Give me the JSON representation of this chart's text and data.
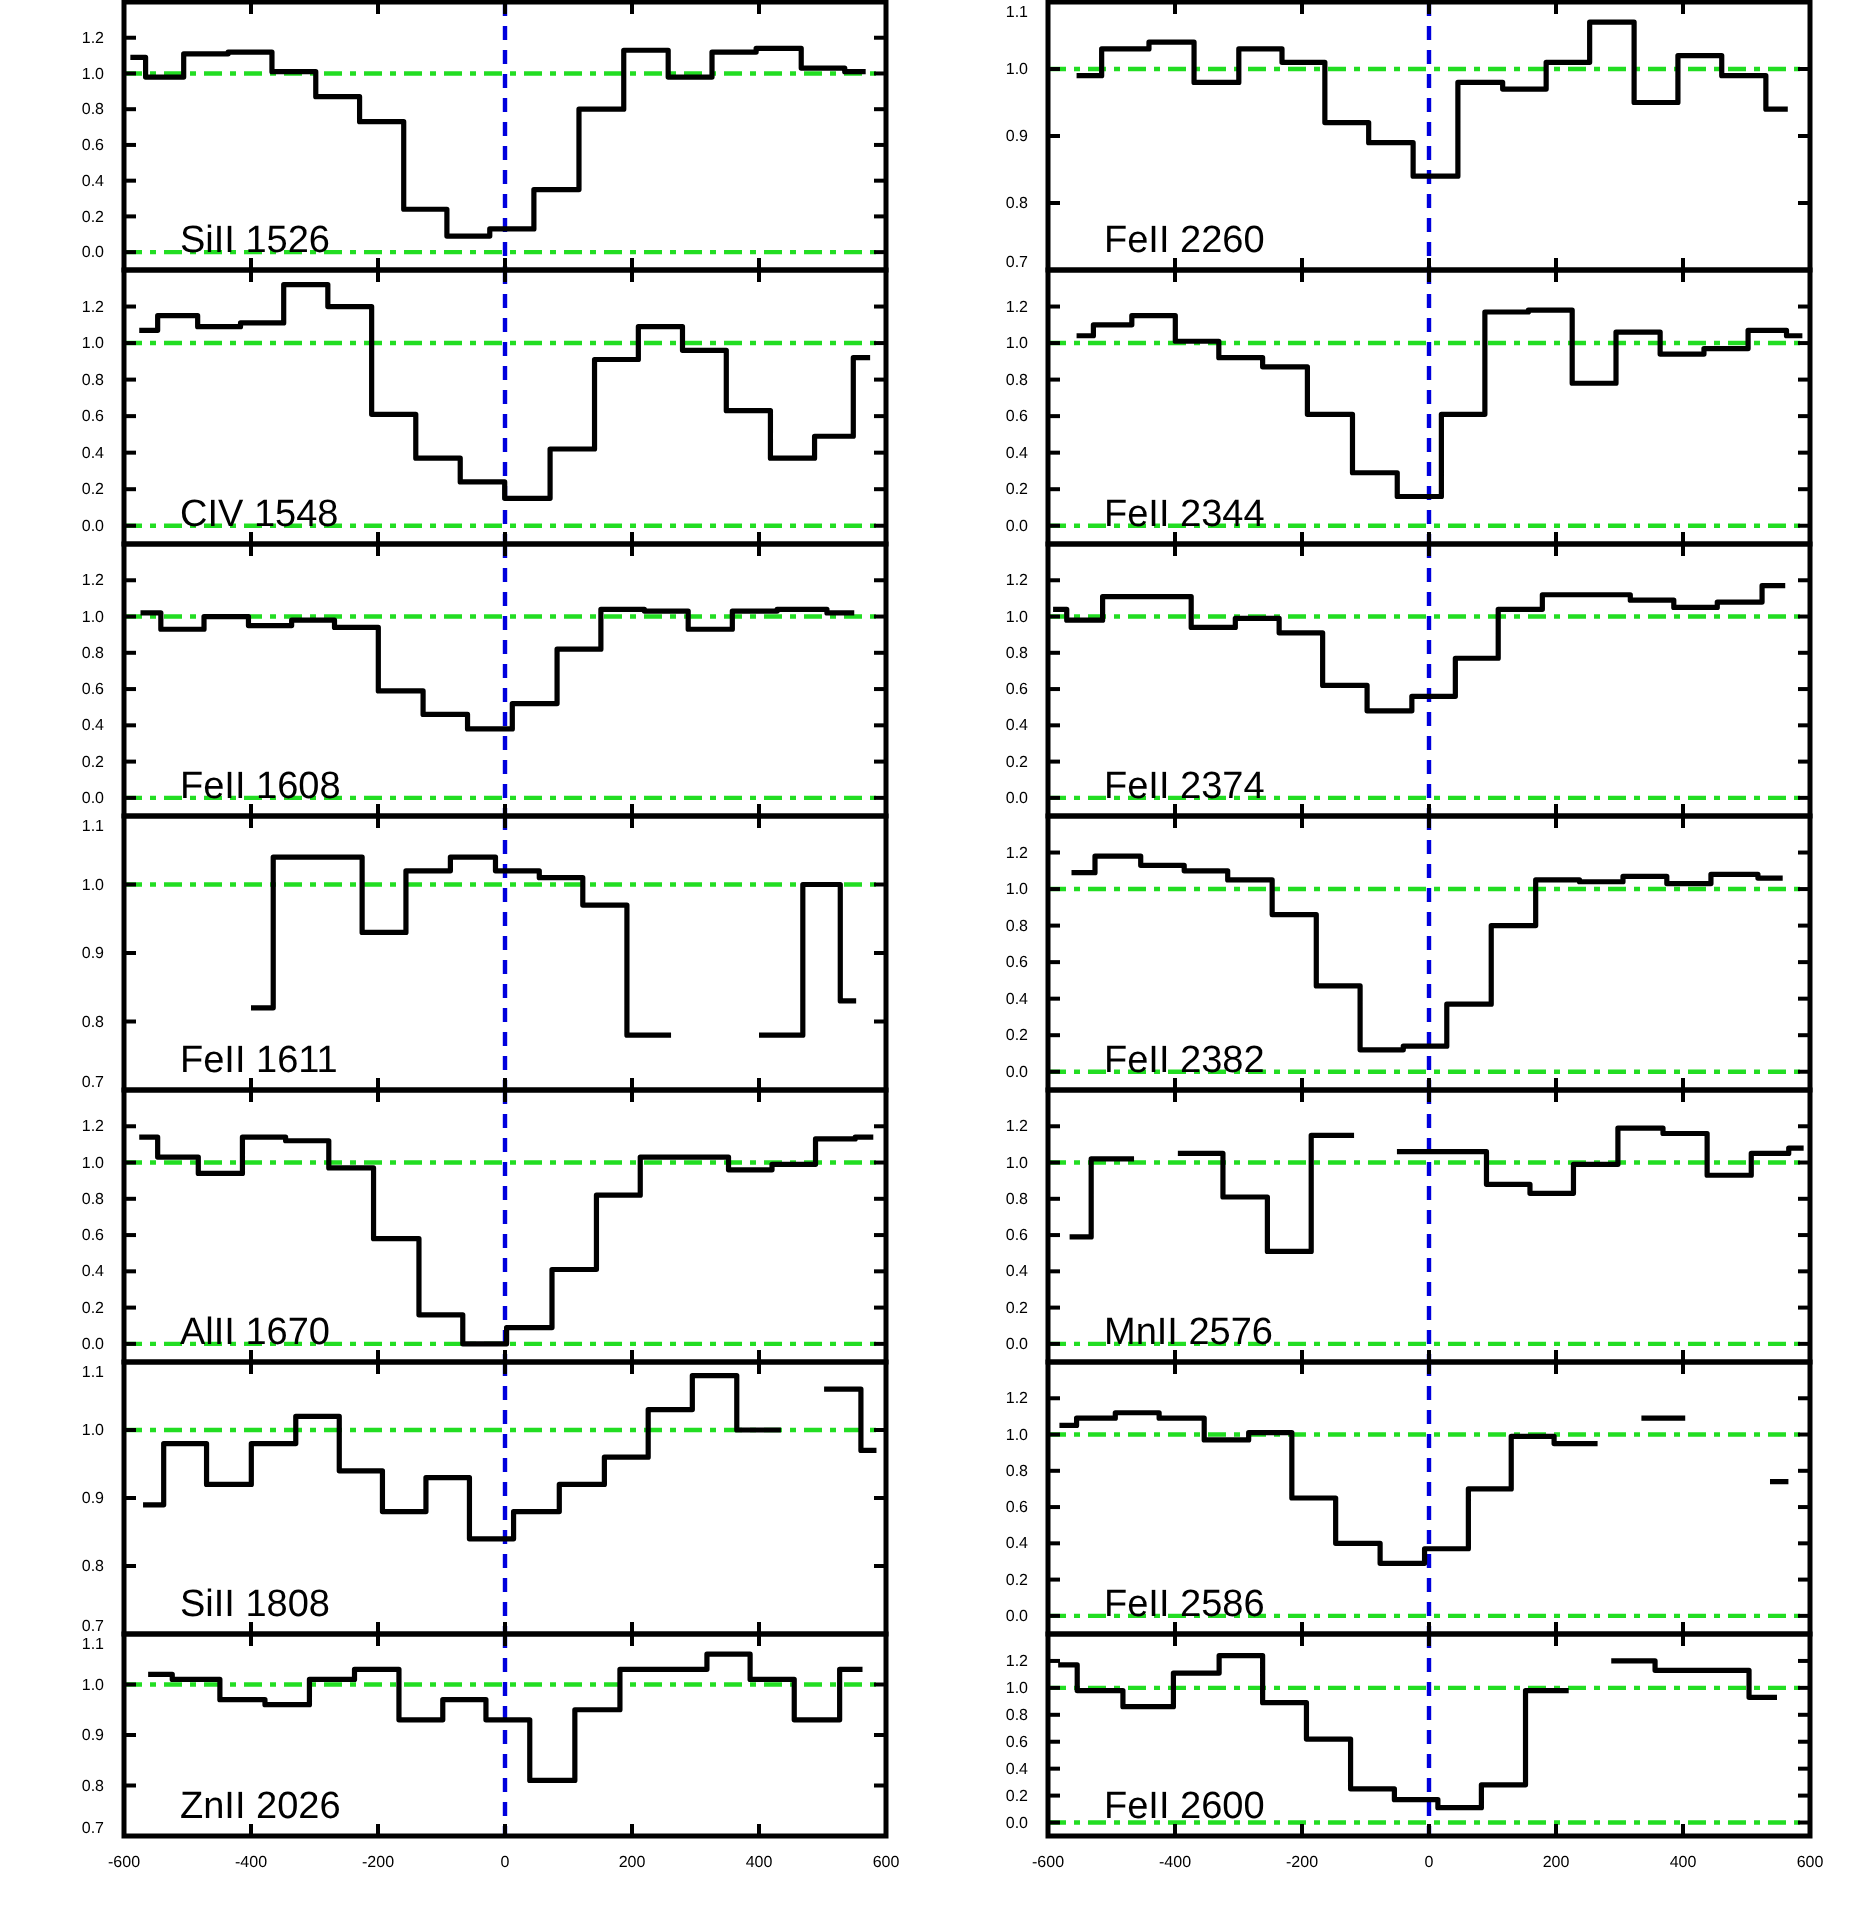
{
  "chart_data": [
    {
      "type": "step",
      "annotations": [
        "SiII 1526"
      ],
      "color": "#000000",
      "xlim": [
        -600,
        600
      ],
      "xticks": [
        -600,
        -400,
        -200,
        0,
        200,
        400,
        600
      ],
      "tick_labels": "y",
      "ylim": [
        -0.1,
        1.4
      ],
      "yticks": [
        {
          "value": 0,
          "label": "0.0"
        },
        {
          "value": 0.2,
          "label": "0.2"
        },
        {
          "value": 0.4,
          "label": "0.4"
        },
        {
          "value": 0.6,
          "label": "0.6"
        },
        {
          "value": 0.8,
          "label": "0.8"
        },
        {
          "value": 1,
          "label": "1.0"
        },
        {
          "value": 1.2,
          "label": "1.2"
        }
      ],
      "ref_lines": [
        {
          "axis": "y",
          "value": 0,
          "color": "#22dd22",
          "line_style": "dashdot"
        },
        {
          "axis": "y",
          "value": 1,
          "color": "#22dd22",
          "line_style": "dashdot"
        },
        {
          "axis": "x",
          "value": 0,
          "color": "#0000dd",
          "line_style": "dashed"
        }
      ],
      "x": [
        -590,
        -542,
        -470,
        -402,
        -332,
        -264,
        -194,
        -125,
        -58,
        10,
        81,
        152,
        222,
        292,
        360,
        431,
        502,
        568
      ],
      "values": [
        1.09,
        0.98,
        1.11,
        1.12,
        1.01,
        0.87,
        0.73,
        0.24,
        0.09,
        0.13,
        0.35,
        0.8,
        1.13,
        0.98,
        1.12,
        1.14,
        1.03,
        1.01
      ]
    },
    {
      "type": "step",
      "annotations": [
        "FeII 2260"
      ],
      "color": "#000000",
      "xlim": [
        -600,
        600
      ],
      "xticks": [
        -600,
        -400,
        -200,
        0,
        200,
        400,
        600
      ],
      "tick_labels": "y",
      "ylim": [
        0.7,
        1.1
      ],
      "yticks": [
        0.7,
        0.8,
        0.9,
        {
          "value": 1,
          "label": "1.0"
        },
        1.1
      ],
      "ref_lines": [
        {
          "axis": "y",
          "value": 1,
          "color": "#22dd22",
          "line_style": "dashdot"
        },
        {
          "axis": "x",
          "value": 0,
          "color": "#0000dd",
          "line_style": "dashed"
        }
      ],
      "x": [
        -555,
        -476,
        -406,
        -334,
        -265,
        -198,
        -130,
        -60,
        10,
        81,
        151,
        218,
        288,
        358,
        426,
        496,
        565
      ],
      "values": [
        0.99,
        1.03,
        1.04,
        0.98,
        1.03,
        1.01,
        0.92,
        0.89,
        0.84,
        0.98,
        0.97,
        1.01,
        1.07,
        0.95,
        1.02,
        0.99,
        0.94
      ]
    },
    {
      "type": "step",
      "annotations": [
        "CIV 1548"
      ],
      "color": "#000000",
      "xlim": [
        -600,
        600
      ],
      "xticks": [
        -600,
        -400,
        -200,
        0,
        200,
        400,
        600
      ],
      "tick_labels": "y",
      "ylim": [
        -0.1,
        1.4
      ],
      "yticks": [
        {
          "value": 0,
          "label": "0.0"
        },
        {
          "value": 0.2,
          "label": "0.2"
        },
        {
          "value": 0.4,
          "label": "0.4"
        },
        {
          "value": 0.6,
          "label": "0.6"
        },
        {
          "value": 0.8,
          "label": "0.8"
        },
        {
          "value": 1,
          "label": "1.0"
        },
        {
          "value": 1.2,
          "label": "1.2"
        }
      ],
      "ref_lines": [
        {
          "axis": "y",
          "value": 0,
          "color": "#22dd22",
          "line_style": "dashdot"
        },
        {
          "axis": "y",
          "value": 1,
          "color": "#22dd22",
          "line_style": "dashdot"
        },
        {
          "axis": "x",
          "value": 0,
          "color": "#0000dd",
          "line_style": "dashed"
        }
      ],
      "x": [
        -576,
        -518,
        -450,
        -383,
        -314,
        -244,
        -176,
        -105,
        -36,
        35,
        107,
        175,
        245,
        314,
        383,
        453,
        522,
        575
      ],
      "values": [
        1.07,
        1.15,
        1.09,
        1.11,
        1.32,
        1.2,
        0.61,
        0.37,
        0.24,
        0.15,
        0.42,
        0.91,
        1.09,
        0.96,
        0.63,
        0.37,
        0.49,
        0.92
      ]
    },
    {
      "type": "step",
      "annotations": [
        "FeII 2344"
      ],
      "color": "#000000",
      "xlim": [
        -600,
        600
      ],
      "xticks": [
        -600,
        -400,
        -200,
        0,
        200,
        400,
        600
      ],
      "tick_labels": "y",
      "ylim": [
        -0.1,
        1.4
      ],
      "yticks": [
        {
          "value": 0,
          "label": "0.0"
        },
        {
          "value": 0.2,
          "label": "0.2"
        },
        {
          "value": 0.4,
          "label": "0.4"
        },
        {
          "value": 0.6,
          "label": "0.6"
        },
        {
          "value": 0.8,
          "label": "0.8"
        },
        {
          "value": 1,
          "label": "1.0"
        },
        {
          "value": 1.2,
          "label": "1.2"
        }
      ],
      "ref_lines": [
        {
          "axis": "y",
          "value": 0,
          "color": "#22dd22",
          "line_style": "dashdot"
        },
        {
          "axis": "y",
          "value": 1,
          "color": "#22dd22",
          "line_style": "dashdot"
        },
        {
          "axis": "x",
          "value": 0,
          "color": "#0000dd",
          "line_style": "dashed"
        }
      ],
      "x": [
        -555,
        -502,
        -434,
        -365,
        -297,
        -227,
        -156,
        -85,
        -15,
        54,
        122,
        191,
        260,
        329,
        399,
        467,
        538,
        588
      ],
      "values": [
        1.04,
        1.1,
        1.15,
        1.01,
        0.92,
        0.87,
        0.61,
        0.29,
        0.16,
        0.61,
        1.17,
        1.18,
        0.78,
        1.06,
        0.94,
        0.97,
        1.07,
        1.04
      ]
    },
    {
      "type": "step",
      "annotations": [
        "FeII 1608"
      ],
      "color": "#000000",
      "xlim": [
        -600,
        600
      ],
      "xticks": [
        -600,
        -400,
        -200,
        0,
        200,
        400,
        600
      ],
      "tick_labels": "y",
      "ylim": [
        -0.1,
        1.4
      ],
      "yticks": [
        {
          "value": 0,
          "label": "0.0"
        },
        {
          "value": 0.2,
          "label": "0.2"
        },
        {
          "value": 0.4,
          "label": "0.4"
        },
        {
          "value": 0.6,
          "label": "0.6"
        },
        {
          "value": 0.8,
          "label": "0.8"
        },
        {
          "value": 1,
          "label": "1.0"
        },
        {
          "value": 1.2,
          "label": "1.2"
        }
      ],
      "ref_lines": [
        {
          "axis": "y",
          "value": 0,
          "color": "#22dd22",
          "line_style": "dashdot"
        },
        {
          "axis": "y",
          "value": 1,
          "color": "#22dd22",
          "line_style": "dashdot"
        },
        {
          "axis": "x",
          "value": 0,
          "color": "#0000dd",
          "line_style": "dashed"
        }
      ],
      "x": [
        -574,
        -510,
        -438,
        -370,
        -302,
        -235,
        -164,
        -94,
        -24,
        47,
        117,
        185,
        254,
        323,
        393,
        464,
        550
      ],
      "values": [
        1.02,
        0.93,
        1.0,
        0.95,
        0.98,
        0.94,
        0.59,
        0.46,
        0.38,
        0.52,
        0.82,
        1.04,
        1.03,
        0.93,
        1.03,
        1.04,
        1.02
      ]
    },
    {
      "type": "step",
      "annotations": [
        "FeII 2374"
      ],
      "color": "#000000",
      "xlim": [
        -600,
        600
      ],
      "xticks": [
        -600,
        -400,
        -200,
        0,
        200,
        400,
        600
      ],
      "tick_labels": "y",
      "ylim": [
        -0.1,
        1.4
      ],
      "yticks": [
        {
          "value": 0,
          "label": "0.0"
        },
        {
          "value": 0.2,
          "label": "0.2"
        },
        {
          "value": 0.4,
          "label": "0.4"
        },
        {
          "value": 0.6,
          "label": "0.6"
        },
        {
          "value": 0.8,
          "label": "0.8"
        },
        {
          "value": 1,
          "label": "1.0"
        },
        {
          "value": 1.2,
          "label": "1.2"
        }
      ],
      "ref_lines": [
        {
          "axis": "y",
          "value": 0,
          "color": "#22dd22",
          "line_style": "dashdot"
        },
        {
          "axis": "y",
          "value": 1,
          "color": "#22dd22",
          "line_style": "dashdot"
        },
        {
          "axis": "x",
          "value": 0,
          "color": "#0000dd",
          "line_style": "dashed"
        }
      ],
      "x": [
        -592,
        -549,
        -479,
        -409,
        -340,
        -270,
        -202,
        -133,
        -62,
        8,
        75,
        143,
        214,
        283,
        351,
        420,
        488,
        561
      ],
      "values": [
        1.04,
        0.98,
        1.11,
        1.11,
        0.94,
        0.99,
        0.91,
        0.62,
        0.48,
        0.56,
        0.77,
        1.04,
        1.12,
        1.12,
        1.09,
        1.05,
        1.08,
        1.17
      ]
    },
    {
      "type": "step",
      "annotations": [
        "FeII 1611"
      ],
      "color": "#000000",
      "xlim": [
        -600,
        600
      ],
      "xticks": [
        -600,
        -400,
        -200,
        0,
        200,
        400,
        600
      ],
      "tick_labels": "y",
      "ylim": [
        0.7,
        1.1
      ],
      "yticks": [
        0.7,
        0.8,
        0.9,
        {
          "value": 1,
          "label": "1.0"
        },
        1.1
      ],
      "ref_lines": [
        {
          "axis": "y",
          "value": 1,
          "color": "#22dd22",
          "line_style": "dashdot"
        },
        {
          "axis": "x",
          "value": 0,
          "color": "#0000dd",
          "line_style": "dashed"
        }
      ],
      "x": [
        -400,
        -330,
        -260,
        -190,
        -122,
        -50,
        20,
        88,
        157,
        227,
        296,
        365,
        435,
        503,
        553
      ],
      "values": [
        0.82,
        1.04,
        1.04,
        0.93,
        1.02,
        1.04,
        1.02,
        1.01,
        0.97,
        0.78,
        null,
        null,
        0.78,
        1.0,
        0.83
      ]
    },
    {
      "type": "step",
      "annotations": [
        "FeII 2382"
      ],
      "color": "#000000",
      "xlim": [
        -600,
        600
      ],
      "xticks": [
        -600,
        -400,
        -200,
        0,
        200,
        400,
        600
      ],
      "tick_labels": "y",
      "ylim": [
        -0.1,
        1.4
      ],
      "yticks": [
        {
          "value": 0,
          "label": "0.0"
        },
        {
          "value": 0.2,
          "label": "0.2"
        },
        {
          "value": 0.4,
          "label": "0.4"
        },
        {
          "value": 0.6,
          "label": "0.6"
        },
        {
          "value": 0.8,
          "label": "0.8"
        },
        {
          "value": 1,
          "label": "1.0"
        },
        {
          "value": 1.2,
          "label": "1.2"
        }
      ],
      "ref_lines": [
        {
          "axis": "y",
          "value": 0,
          "color": "#22dd22",
          "line_style": "dashdot"
        },
        {
          "axis": "y",
          "value": 1,
          "color": "#22dd22",
          "line_style": "dashdot"
        },
        {
          "axis": "x",
          "value": 0,
          "color": "#0000dd",
          "line_style": "dashed"
        }
      ],
      "x": [
        -563,
        -489,
        -419,
        -352,
        -282,
        -212,
        -143,
        -74,
        -7,
        63,
        133,
        203,
        271,
        340,
        409,
        479,
        557
      ],
      "values": [
        1.09,
        1.18,
        1.13,
        1.1,
        1.05,
        0.86,
        0.47,
        0.12,
        0.14,
        0.37,
        0.8,
        1.05,
        1.04,
        1.07,
        1.03,
        1.08,
        1.06
      ]
    },
    {
      "type": "step",
      "annotations": [
        "AlII 1670"
      ],
      "color": "#000000",
      "xlim": [
        -600,
        600
      ],
      "xticks": [
        -600,
        -400,
        -200,
        0,
        200,
        400,
        600
      ],
      "tick_labels": "y",
      "ylim": [
        -0.1,
        1.4
      ],
      "yticks": [
        {
          "value": 0,
          "label": "0.0"
        },
        {
          "value": 0.2,
          "label": "0.2"
        },
        {
          "value": 0.4,
          "label": "0.4"
        },
        {
          "value": 0.6,
          "label": "0.6"
        },
        {
          "value": 0.8,
          "label": "0.8"
        },
        {
          "value": 1,
          "label": "1.0"
        },
        {
          "value": 1.2,
          "label": "1.2"
        }
      ],
      "ref_lines": [
        {
          "axis": "y",
          "value": 0,
          "color": "#22dd22",
          "line_style": "dashdot"
        },
        {
          "axis": "y",
          "value": 1,
          "color": "#22dd22",
          "line_style": "dashdot"
        },
        {
          "axis": "x",
          "value": 0,
          "color": "#0000dd",
          "line_style": "dashed"
        }
      ],
      "x": [
        -576,
        -518,
        -448,
        -379,
        -312,
        -243,
        -171,
        -100,
        -33,
        38,
        110,
        178,
        248,
        318,
        386,
        455,
        523,
        580
      ],
      "values": [
        1.14,
        1.03,
        0.94,
        1.14,
        1.12,
        0.97,
        0.58,
        0.16,
        0.0,
        0.09,
        0.41,
        0.82,
        1.03,
        1.03,
        0.96,
        0.99,
        1.13,
        1.14
      ]
    },
    {
      "type": "step",
      "annotations": [
        "MnII 2576"
      ],
      "color": "#000000",
      "xlim": [
        -600,
        600
      ],
      "xticks": [
        -600,
        -400,
        -200,
        0,
        200,
        400,
        600
      ],
      "tick_labels": "y",
      "ylim": [
        -0.1,
        1.4
      ],
      "yticks": [
        {
          "value": 0,
          "label": "0.0"
        },
        {
          "value": 0.2,
          "label": "0.2"
        },
        {
          "value": 0.4,
          "label": "0.4"
        },
        {
          "value": 0.6,
          "label": "0.6"
        },
        {
          "value": 0.8,
          "label": "0.8"
        },
        {
          "value": 1,
          "label": "1.0"
        },
        {
          "value": 1.2,
          "label": "1.2"
        }
      ],
      "ref_lines": [
        {
          "axis": "y",
          "value": 0,
          "color": "#22dd22",
          "line_style": "dashdot"
        },
        {
          "axis": "y",
          "value": 1,
          "color": "#22dd22",
          "line_style": "dashdot"
        },
        {
          "axis": "x",
          "value": 0,
          "color": "#0000dd",
          "line_style": "dashed"
        }
      ],
      "x": [
        -566,
        -498,
        -431,
        -360,
        -289,
        -220,
        -151,
        -85,
        -16,
        56,
        125,
        193,
        262,
        333,
        404,
        472,
        543,
        590
      ],
      "values": [
        0.59,
        1.02,
        null,
        1.05,
        0.81,
        0.51,
        1.15,
        null,
        1.06,
        1.06,
        0.88,
        0.83,
        0.99,
        1.19,
        1.16,
        0.93,
        1.05,
        1.08
      ]
    },
    {
      "type": "step",
      "annotations": [
        "SiII 1808"
      ],
      "color": "#000000",
      "xlim": [
        -600,
        600
      ],
      "xticks": [
        -600,
        -400,
        -200,
        0,
        200,
        400,
        600
      ],
      "tick_labels": "y",
      "ylim": [
        0.7,
        1.1
      ],
      "yticks": [
        0.7,
        0.8,
        0.9,
        {
          "value": 1,
          "label": "1.0"
        },
        1.1
      ],
      "ref_lines": [
        {
          "axis": "y",
          "value": 1,
          "color": "#22dd22",
          "line_style": "dashdot"
        },
        {
          "axis": "x",
          "value": 0,
          "color": "#0000dd",
          "line_style": "dashed"
        }
      ],
      "x": [
        -570,
        -505,
        -435,
        -364,
        -295,
        -227,
        -159,
        -90,
        -22,
        49,
        122,
        191,
        260,
        330,
        400,
        469,
        536,
        585
      ],
      "values": [
        0.89,
        0.98,
        0.92,
        0.98,
        1.02,
        0.94,
        0.88,
        0.93,
        0.84,
        0.88,
        0.92,
        0.96,
        1.03,
        1.08,
        1.0,
        null,
        1.06,
        0.97
      ]
    },
    {
      "type": "step",
      "annotations": [
        "FeII 2586"
      ],
      "color": "#000000",
      "xlim": [
        -600,
        600
      ],
      "xticks": [
        -600,
        -400,
        -200,
        0,
        200,
        400,
        600
      ],
      "tick_labels": "y",
      "ylim": [
        -0.1,
        1.4
      ],
      "yticks": [
        {
          "value": 0,
          "label": "0.0"
        },
        {
          "value": 0.2,
          "label": "0.2"
        },
        {
          "value": 0.4,
          "label": "0.4"
        },
        {
          "value": 0.6,
          "label": "0.6"
        },
        {
          "value": 0.8,
          "label": "0.8"
        },
        {
          "value": 1,
          "label": "1.0"
        },
        {
          "value": 1.2,
          "label": "1.2"
        }
      ],
      "ref_lines": [
        {
          "axis": "y",
          "value": 0,
          "color": "#22dd22",
          "line_style": "dashdot"
        },
        {
          "axis": "y",
          "value": 1,
          "color": "#22dd22",
          "line_style": "dashdot"
        },
        {
          "axis": "x",
          "value": 0,
          "color": "#0000dd",
          "line_style": "dashed"
        }
      ],
      "x": [
        -582,
        -528,
        -460,
        -390,
        -318,
        -250,
        -182,
        -112,
        -42,
        28,
        96,
        163,
        231,
        300,
        369,
        438,
        508,
        566
      ],
      "values": [
        1.05,
        1.09,
        1.12,
        1.09,
        0.97,
        1.01,
        0.65,
        0.4,
        0.29,
        0.37,
        0.7,
        0.99,
        0.95,
        null,
        1.09,
        null,
        null,
        0.74
      ]
    },
    {
      "type": "step",
      "annotations": [
        "ZnII 2026"
      ],
      "color": "#000000",
      "xlim": [
        -600,
        600
      ],
      "xticks": [
        -600,
        -400,
        -200,
        0,
        200,
        400,
        600
      ],
      "ylim": [
        0.7,
        1.1
      ],
      "yticks": [
        0.7,
        0.8,
        0.9,
        {
          "value": 1,
          "label": "1.0"
        },
        1.1
      ],
      "ref_lines": [
        {
          "axis": "y",
          "value": 1,
          "color": "#22dd22",
          "line_style": "dashdot"
        },
        {
          "axis": "x",
          "value": 0,
          "color": "#0000dd",
          "line_style": "dashed"
        }
      ],
      "x": [
        -562,
        -486,
        -412,
        -344,
        -272,
        -202,
        -132,
        -64,
        4,
        74,
        146,
        216,
        284,
        352,
        420,
        491,
        563
      ],
      "values": [
        1.02,
        1.01,
        0.97,
        0.96,
        1.01,
        1.03,
        0.93,
        0.97,
        0.93,
        0.81,
        0.95,
        1.03,
        1.03,
        1.06,
        1.01,
        0.93,
        1.03
      ]
    },
    {
      "type": "step",
      "annotations": [
        "FeII 2600"
      ],
      "color": "#000000",
      "xlim": [
        -600,
        600
      ],
      "xticks": [
        -600,
        -400,
        -200,
        0,
        200,
        400,
        600
      ],
      "ylim": [
        -0.1,
        1.4
      ],
      "yticks": [
        {
          "value": 0,
          "label": "0.0"
        },
        {
          "value": 0.2,
          "label": "0.2"
        },
        {
          "value": 0.4,
          "label": "0.4"
        },
        {
          "value": 0.6,
          "label": "0.6"
        },
        {
          "value": 0.8,
          "label": "0.8"
        },
        {
          "value": 1,
          "label": "1.0"
        },
        {
          "value": 1.2,
          "label": "1.2"
        }
      ],
      "ref_lines": [
        {
          "axis": "y",
          "value": 0,
          "color": "#22dd22",
          "line_style": "dashdot"
        },
        {
          "axis": "y",
          "value": 1,
          "color": "#22dd22",
          "line_style": "dashdot"
        },
        {
          "axis": "x",
          "value": 0,
          "color": "#0000dd",
          "line_style": "dashed"
        }
      ],
      "x": [
        -584,
        -524,
        -440,
        -365,
        -296,
        -228,
        -158,
        -89,
        -20,
        48,
        117,
        187,
        253,
        321,
        391,
        460,
        548
      ],
      "values": [
        1.17,
        0.98,
        0.86,
        1.11,
        1.24,
        0.89,
        0.62,
        0.25,
        0.17,
        0.11,
        0.28,
        0.98,
        null,
        1.2,
        1.13,
        1.13,
        0.93
      ]
    }
  ]
}
